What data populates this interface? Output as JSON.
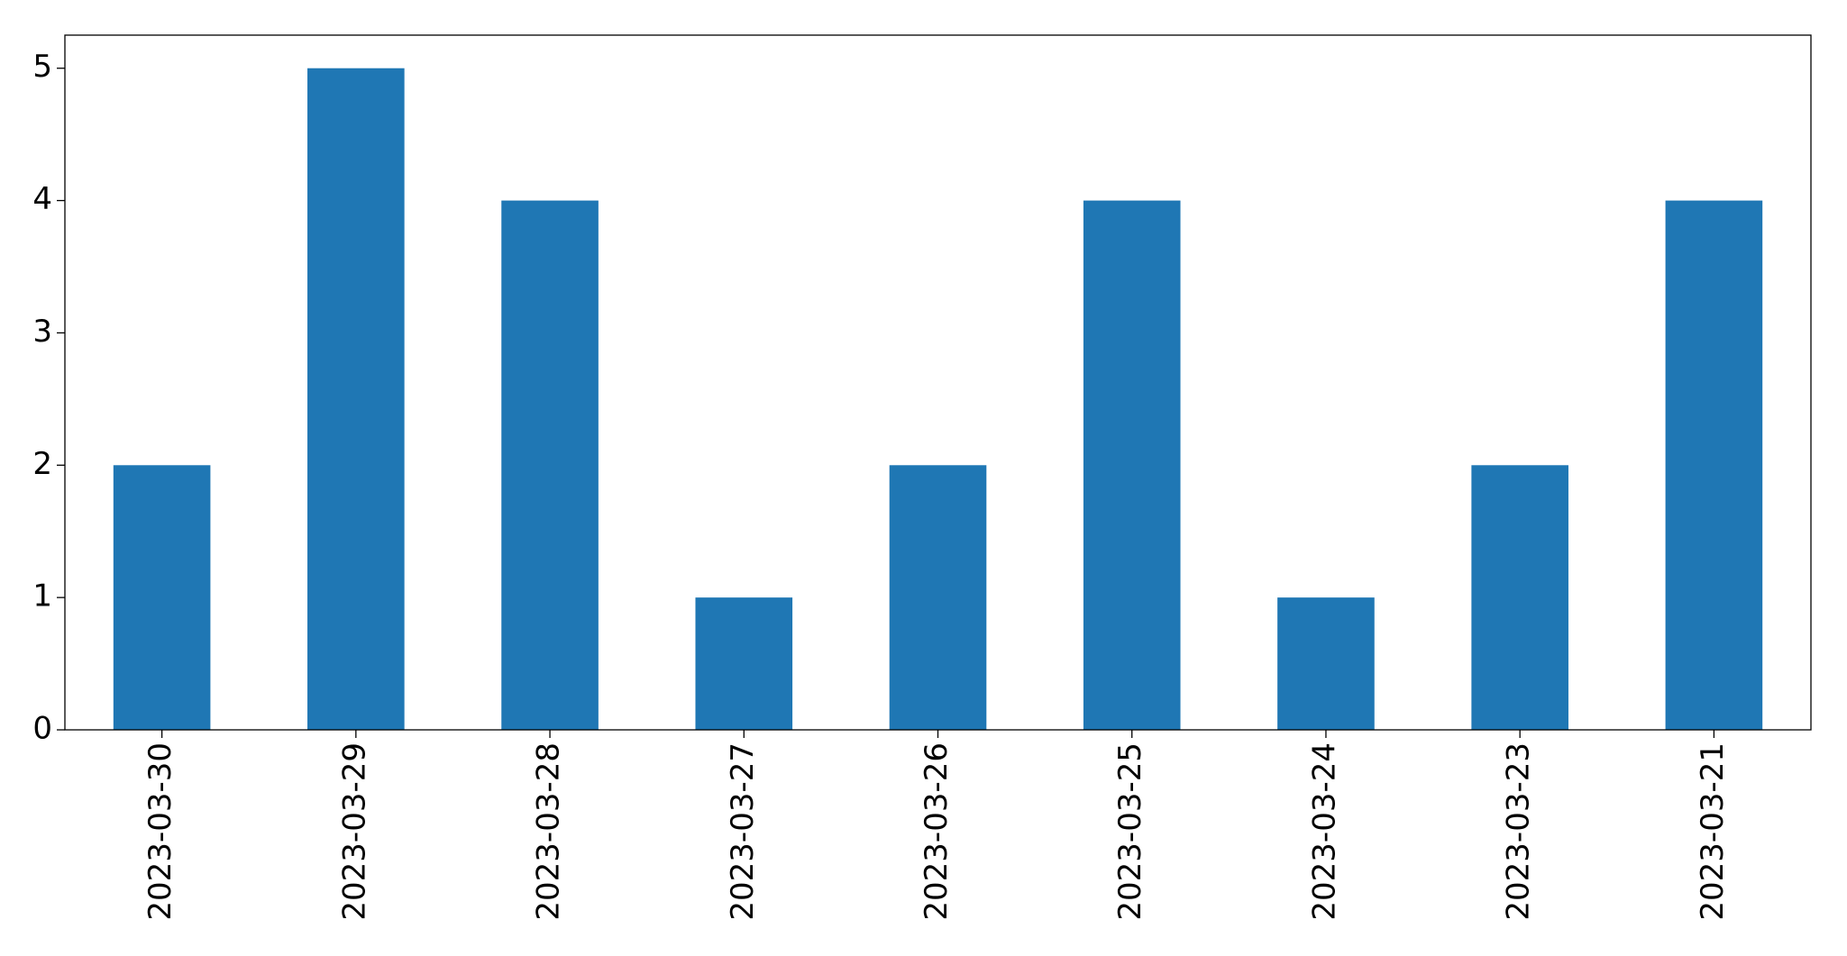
{
  "chart_data": {
    "type": "bar",
    "categories": [
      "2023-03-30",
      "2023-03-29",
      "2023-03-28",
      "2023-03-27",
      "2023-03-26",
      "2023-03-25",
      "2023-03-24",
      "2023-03-23",
      "2023-03-21"
    ],
    "values": [
      2,
      5,
      4,
      1,
      2,
      4,
      1,
      2,
      4
    ],
    "color": "#1f77b4",
    "ylim": [
      0,
      5.25
    ],
    "yticks": [
      0,
      1,
      2,
      3,
      4,
      5
    ],
    "grid": false
  }
}
